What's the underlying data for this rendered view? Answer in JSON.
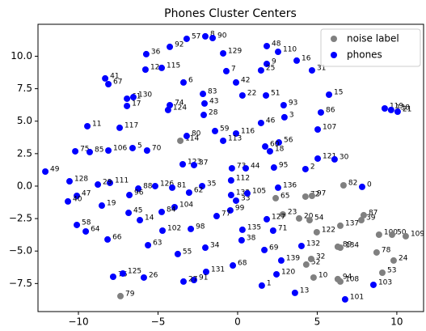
{
  "chart_data": {
    "type": "scatter",
    "title": "Phones Cluster Centers",
    "xlim": [
      -12.54,
      11.68
    ],
    "ylim": [
      -9.66,
      12.46
    ],
    "xticks": [
      {
        "value": -10,
        "label": "−10"
      },
      {
        "value": -5,
        "label": "−5"
      },
      {
        "value": 0,
        "label": "0"
      },
      {
        "value": 5,
        "label": "5"
      },
      {
        "value": 10,
        "label": "10"
      }
    ],
    "yticks": [
      {
        "value": -7.5,
        "label": "−7.5"
      },
      {
        "value": -5,
        "label": "−5.0"
      },
      {
        "value": -2.5,
        "label": "−2.5"
      },
      {
        "value": 0,
        "label": "0.0"
      },
      {
        "value": 2.5,
        "label": "2.5"
      },
      {
        "value": 5,
        "label": "5.0"
      },
      {
        "value": 7.5,
        "label": "7.5"
      },
      {
        "value": 10,
        "label": "10.0"
      }
    ],
    "legend": "upper right",
    "series": [
      {
        "name": "noise label",
        "color": "#808080",
        "labels": [
          114,
          82,
          65,
          72,
          97,
          23,
          20,
          54,
          122,
          137,
          87,
          39,
          100,
          50,
          109,
          89,
          134,
          78,
          24,
          52,
          32,
          10,
          108,
          94,
          53,
          79
        ],
        "x": [
          -3.6,
          6.65,
          2.39,
          4.26,
          4.67,
          2.84,
          3.86,
          4.52,
          4.97,
          6.45,
          7.92,
          7.77,
          8.88,
          9.7,
          10.56,
          6.29,
          6.45,
          8.73,
          9.8,
          4.31,
          4.62,
          4.77,
          6.45,
          6.29,
          9.09,
          -7.36
        ],
        "values": [
          3.49,
          0.06,
          -0.93,
          -0.81,
          -0.75,
          -2.18,
          -2.49,
          -2.62,
          -3.55,
          -3.05,
          -2.24,
          -2.62,
          -3.74,
          -3.74,
          -3.86,
          -4.67,
          -4.74,
          -5.11,
          -5.73,
          -6.04,
          -5.61,
          -7.04,
          -7.35,
          -7.16,
          -6.67,
          -8.47
        ]
      },
      {
        "name": "phones",
        "color": "#0000ff",
        "labels": [
          57,
          8,
          90,
          92,
          36,
          129,
          48,
          110,
          9,
          25,
          16,
          31,
          41,
          67,
          12,
          115,
          7,
          6,
          42,
          83,
          22,
          51,
          43,
          74,
          124,
          61,
          130,
          17,
          93,
          15,
          86,
          28,
          3,
          46,
          119,
          138,
          21,
          11,
          117,
          59,
          116,
          107,
          80,
          113,
          56,
          60,
          18,
          75,
          85,
          106,
          5,
          70,
          121,
          30,
          2,
          95,
          73,
          44,
          123,
          37,
          49,
          128,
          111,
          29,
          88,
          126,
          81,
          96,
          112,
          35,
          62,
          136,
          0,
          47,
          40,
          19,
          133,
          33,
          105,
          104,
          84,
          45,
          14,
          99,
          77,
          127,
          71,
          58,
          64,
          102,
          98,
          135,
          38,
          66,
          63,
          34,
          55,
          69,
          132,
          139,
          68,
          131,
          91,
          27,
          76,
          125,
          26,
          1,
          120,
          13,
          101,
          103
        ],
        "x": [
          -3.2,
          -2.03,
          -1.57,
          -4.26,
          -5.74,
          -0.91,
          1.83,
          2.54,
          1.83,
          1.47,
          3.71,
          4.67,
          -8.32,
          -8.12,
          -5.79,
          -4.77,
          -0.71,
          -3.4,
          -0.1,
          -2.18,
          0.3,
          1.78,
          -2.08,
          -4.26,
          -4.37,
          -6.95,
          -6.55,
          -6.95,
          2.89,
          5.74,
          5.23,
          -2.13,
          2.94,
          1.47,
          9.24,
          9.64,
          10.05,
          -9.44,
          -7.41,
          -1.42,
          -0.1,
          5.03,
          -3.2,
          -0.91,
          2.59,
          1.73,
          2.03,
          -10.2,
          -9.29,
          -8.12,
          -6.6,
          -5.69,
          5.03,
          6.09,
          4.26,
          2.28,
          -0.36,
          0.51,
          -3.45,
          -2.74,
          -12.08,
          -10.56,
          -8.02,
          -8.78,
          -6.24,
          -5.18,
          -4.11,
          -6.8,
          -0.41,
          -2.23,
          -3.05,
          2.54,
          7.82,
          -10.1,
          -10.66,
          -8.53,
          -0.41,
          -0.1,
          0.61,
          -3.96,
          -4.77,
          -6.85,
          -6.14,
          -0.46,
          -1.32,
          1.83,
          2.23,
          -10.1,
          -9.54,
          -4.72,
          -2.94,
          0.3,
          0.25,
          -8.17,
          -5.63,
          -2.03,
          -3.76,
          1.68,
          4.01,
          2.74,
          -0.3,
          -1.98,
          -2.74,
          -3.4,
          -7.82,
          -7.21,
          -5.89,
          1.52,
          2.44,
          3.6,
          6.75,
          8.53
        ],
        "values": [
          11.34,
          11.53,
          11.4,
          10.72,
          10.16,
          10.22,
          10.78,
          10.34,
          9.41,
          8.91,
          9.66,
          8.91,
          8.29,
          7.85,
          8.97,
          9.1,
          8.85,
          7.98,
          7.98,
          7.1,
          6.98,
          6.98,
          6.36,
          6.23,
          5.86,
          6.73,
          6.85,
          6.17,
          6.23,
          7.04,
          5.67,
          5.48,
          5.3,
          4.86,
          5.98,
          5.86,
          5.73,
          4.61,
          4.49,
          4.24,
          4.05,
          4.36,
          3.86,
          3.49,
          3.36,
          3.05,
          2.68,
          2.68,
          2.62,
          2.74,
          2.93,
          2.74,
          2.12,
          2.06,
          1.31,
          1.43,
          1.37,
          1.37,
          1.68,
          1.62,
          1.12,
          0.37,
          0.25,
          0.12,
          -0.19,
          0.0,
          -0.12,
          -0.69,
          0.44,
          0.0,
          -0.5,
          -0.12,
          -0.06,
          -0.75,
          -1.18,
          -1.5,
          -0.69,
          -1.12,
          -0.56,
          -1.62,
          -1.99,
          -2.06,
          -2.62,
          -1.87,
          -2.31,
          -2.55,
          -3.43,
          -2.99,
          -3.49,
          -3.43,
          -3.3,
          -3.36,
          -4.17,
          -4.11,
          -4.55,
          -4.74,
          -5.23,
          -4.92,
          -4.61,
          -5.73,
          -6.11,
          -6.6,
          -7.23,
          -7.35,
          -6.98,
          -6.73,
          -7.04,
          -7.66,
          -6.79,
          -8.22,
          -8.72,
          -7.6
        ]
      }
    ]
  }
}
